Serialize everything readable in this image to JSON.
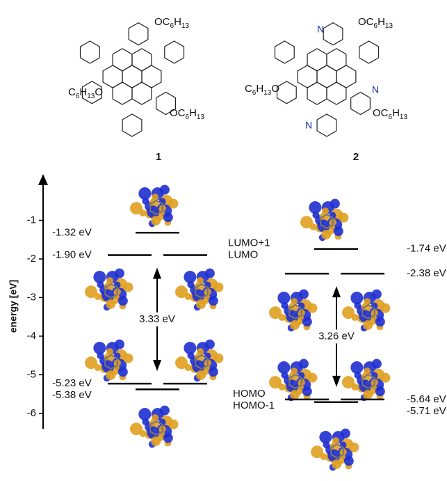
{
  "structures": [
    {
      "label": "1",
      "substituents": [
        "OC6H13",
        "C6H13O",
        "OC6H13"
      ]
    },
    {
      "label": "2",
      "substituents": [
        "OC6H13",
        "C6H13O",
        "OC6H13"
      ],
      "atoms": [
        "N",
        "N",
        "N"
      ]
    }
  ],
  "chart_data": {
    "type": "energy-levels",
    "ylabel": "energy [eV]",
    "ylim": [
      -6.4,
      0.2
    ],
    "yticks": [
      -1,
      -2,
      -3,
      -4,
      -5,
      -6
    ],
    "level_names": [
      "LUMO+1",
      "LUMO",
      "HOMO",
      "HOMO-1"
    ],
    "compounds": [
      {
        "levels": [
          -1.32,
          -1.9,
          -5.23,
          -5.38
        ],
        "value_labels": [
          "-1.32 eV",
          "-1.90 eV",
          "-5.23 eV",
          "-5.38 eV"
        ],
        "degenerate": [
          false,
          true,
          true,
          false
        ],
        "gap": {
          "value": 3.33,
          "label": "3.33 eV"
        }
      },
      {
        "levels": [
          -1.74,
          -2.38,
          -5.64,
          -5.71
        ],
        "value_labels": [
          "-1.74 eV",
          "-2.38 eV",
          "-5.64 eV",
          "-5.71 eV"
        ],
        "degenerate": [
          false,
          true,
          true,
          false
        ],
        "gap": {
          "value": 3.26,
          "label": "3.26 eV"
        }
      }
    ]
  }
}
